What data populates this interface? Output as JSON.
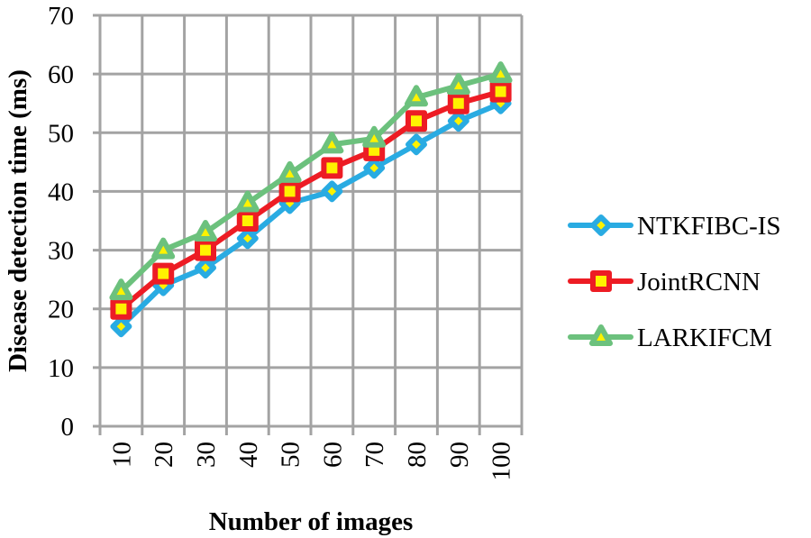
{
  "chart_data": {
    "type": "line",
    "title": "",
    "xlabel": "Number of images",
    "ylabel": "Disease detection time (ms)",
    "categories": [
      "10",
      "20",
      "30",
      "40",
      "50",
      "60",
      "70",
      "80",
      "90",
      "100"
    ],
    "ylim": [
      0,
      70
    ],
    "yticks": [
      0,
      10,
      20,
      30,
      40,
      50,
      60,
      70
    ],
    "grid": true,
    "legend_position": "right",
    "series": [
      {
        "name": "NTKFIBC-IS",
        "color": "#29abe2",
        "marker": "diamond",
        "values": [
          17,
          24,
          27,
          32,
          38,
          40,
          44,
          48,
          52,
          55
        ]
      },
      {
        "name": "JointRCNN",
        "color": "#ed1c24",
        "marker": "square",
        "values": [
          20,
          26,
          30,
          35,
          40,
          44,
          47,
          52,
          55,
          57
        ]
      },
      {
        "name": "LARKIFCM",
        "color": "#6cc17d",
        "marker": "triangle",
        "values": [
          23,
          30,
          33,
          38,
          43,
          48,
          49,
          56,
          58,
          60
        ]
      }
    ]
  },
  "colors": {
    "grid": "#a3a3a3",
    "marker_fill": "#fff200",
    "text": "#231f20"
  }
}
